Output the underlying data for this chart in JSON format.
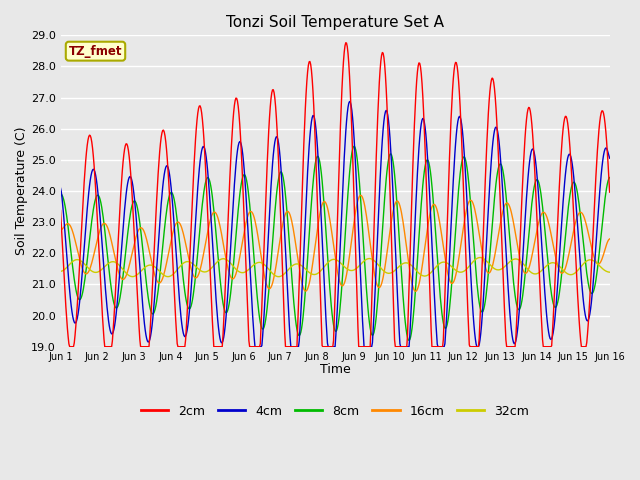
{
  "title": "Tonzi Soil Temperature Set A",
  "xlabel": "Time",
  "ylabel": "Soil Temperature (C)",
  "ylim": [
    19.0,
    29.0
  ],
  "yticks": [
    19.0,
    20.0,
    21.0,
    22.0,
    23.0,
    24.0,
    25.0,
    26.0,
    27.0,
    28.0,
    29.0
  ],
  "xtick_labels": [
    "Jun 1",
    "Jun 2",
    "Jun 3",
    "Jun 4",
    "Jun 5",
    "Jun 6",
    "Jun 7",
    "Jun 8",
    "Jun 9",
    "Jun 10",
    "Jun 11",
    "Jun 12",
    "Jun 13",
    "Jun 14",
    "Jun 15",
    "Jun 16"
  ],
  "annotation_text": "TZ_fmet",
  "annotation_color": "#8B0000",
  "annotation_bg": "#FFFFCC",
  "annotation_border": "#AAAA00",
  "fig_bg_color": "#E8E8E8",
  "plot_bg_color": "#E8E8E8",
  "grid_color": "#FFFFFF",
  "colors": {
    "2cm": "#FF0000",
    "4cm": "#0000CC",
    "8cm": "#00BB00",
    "16cm": "#FF8800",
    "32cm": "#CCCC00"
  },
  "legend_labels": [
    "2cm",
    "4cm",
    "8cm",
    "16cm",
    "32cm"
  ],
  "n_points": 721,
  "duration_days": 15
}
